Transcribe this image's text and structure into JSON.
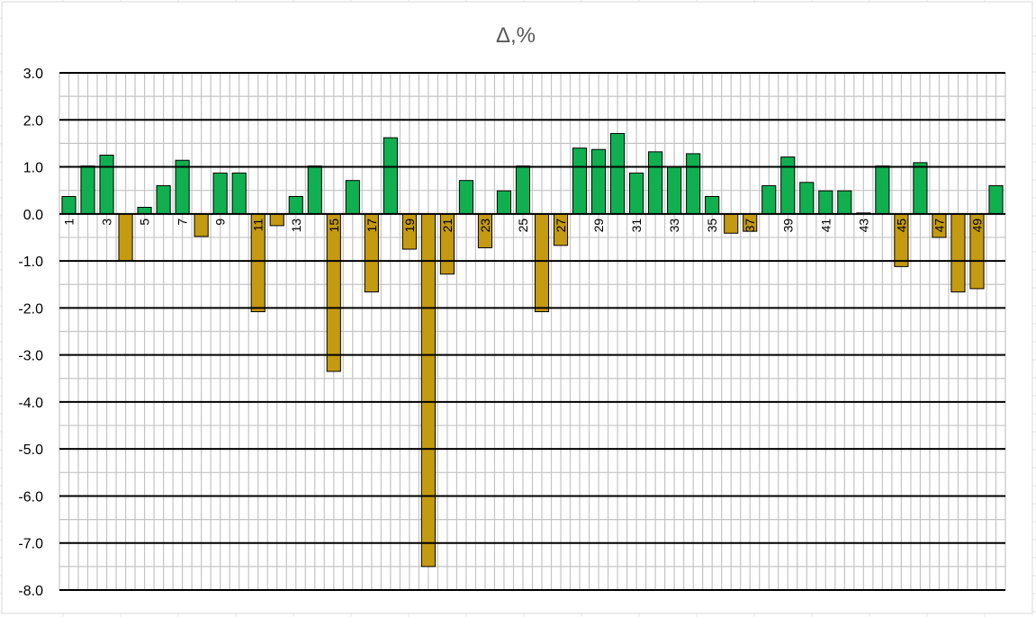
{
  "chart_data": {
    "type": "bar",
    "title": "Δ,%",
    "xlabel": "",
    "ylabel": "",
    "ylim": [
      -8.0,
      3.0
    ],
    "yticks": [
      "3.0",
      "2.0",
      "1.0",
      "0.0",
      "-1.0",
      "-2.0",
      "-3.0",
      "-4.0",
      "-5.0",
      "-6.0",
      "-7.0",
      "-8.0"
    ],
    "grid": true,
    "legend": "none",
    "categories": [
      "1",
      "2",
      "3",
      "4",
      "5",
      "6",
      "7",
      "8",
      "9",
      "10",
      "11",
      "12",
      "13",
      "14",
      "15",
      "16",
      "17",
      "18",
      "19",
      "20",
      "21",
      "22",
      "23",
      "24",
      "25",
      "26",
      "27",
      "28",
      "29",
      "30",
      "31",
      "32",
      "33",
      "34",
      "35",
      "36",
      "37",
      "38",
      "39",
      "40",
      "41",
      "42",
      "43",
      "44",
      "45",
      "46",
      "47",
      "48",
      "49",
      "50"
    ],
    "category_labels": [
      "1",
      "3",
      "5",
      "7",
      "9",
      "11",
      "13",
      "15",
      "17",
      "19",
      "21",
      "23",
      "25",
      "27",
      "29",
      "31",
      "33",
      "35",
      "37",
      "39",
      "41",
      "43",
      "45",
      "47",
      "49"
    ],
    "values": [
      0.37,
      1.02,
      1.25,
      -1.0,
      0.14,
      0.6,
      1.14,
      -0.48,
      0.87,
      0.87,
      -2.08,
      -0.25,
      0.37,
      1.02,
      -3.35,
      0.71,
      -1.66,
      1.62,
      -0.75,
      -7.5,
      -1.28,
      0.71,
      -0.72,
      0.49,
      1.02,
      -2.08,
      -0.67,
      1.4,
      1.37,
      1.71,
      0.87,
      1.32,
      1.0,
      1.28,
      0.37,
      -0.41,
      -0.37,
      0.6,
      1.21,
      0.67,
      0.49,
      0.49,
      0.02,
      1.02,
      -1.12,
      1.09,
      -0.5,
      -1.66,
      -1.59,
      0.6
    ],
    "colors": {
      "positive": "#10B050",
      "negative": "#C49A10",
      "outline": "#000000"
    }
  }
}
